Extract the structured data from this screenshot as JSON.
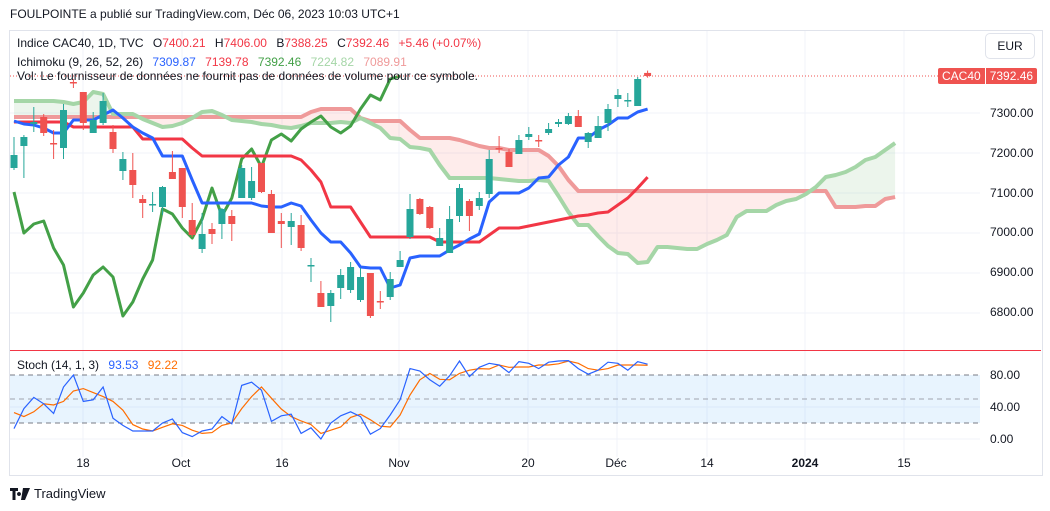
{
  "publisher_line": "FOULPOINTE a publié sur TradingView.com, Déc 06, 2023 10:03 UTC+1",
  "legend": {
    "symbol": "Indice CAC40, 1D, TVC",
    "o_label": "O",
    "o": "7400.21",
    "h_label": "H",
    "h": "7406.00",
    "b_label": "B",
    "b": "7388.25",
    "c_label": "C",
    "c": "7392.46",
    "change": "+5.46 (+0.07%)",
    "ichimoku_label": "Ichimoku (9, 26, 52, 26)",
    "ichimoku_values": [
      "7309.87",
      "7139.78",
      "7392.46",
      "7224.82",
      "7089.91"
    ],
    "vol_note": "Vol: Le fournisseur de données ne fournit pas de données de volume pour ce symbole.",
    "stoch_label": "Stoch (14, 1, 3)",
    "stoch_k": "93.53",
    "stoch_d": "92.22"
  },
  "currency_button": "EUR",
  "last_price_tag": {
    "symbol": "CAC40",
    "price": "7392.46"
  },
  "price_axis": [
    "7300.00",
    "7200.00",
    "7100.00",
    "7000.00",
    "6900.00",
    "6800.00"
  ],
  "stoch_axis": [
    "80.00",
    "40.00",
    "0.00"
  ],
  "time_axis": [
    "18",
    "Oct",
    "16",
    "Nov",
    "20",
    "Déc",
    "14",
    "2024",
    "15"
  ],
  "brand": "TradingView",
  "colors": {
    "up": "#26a69a",
    "down": "#ef5350",
    "tenkan": "#2962ff",
    "kijun": "#f23645",
    "chikou": "#43a047",
    "span_a": "#a5d6a7",
    "span_b": "#ef9a9a",
    "stoch_k": "#2962ff",
    "stoch_d": "#ff6d00"
  },
  "chart_data": {
    "type": "candlestick",
    "symbol": "CAC40",
    "ylim": [
      6730,
      7545
    ],
    "ohlc": [
      [
        7162.5,
        7240,
        7157.5,
        7195
      ],
      [
        7217.5,
        7245,
        7137.5,
        7240
      ],
      [
        7272.5,
        7315,
        7252.5,
        7277.5
      ],
      [
        7290,
        7297.5,
        7242.5,
        7250
      ],
      [
        7225,
        7257.5,
        7185,
        7222
      ],
      [
        7212.5,
        7322.5,
        7185,
        7307.5
      ],
      [
        7377.5,
        7385,
        7362.5,
        7375
      ],
      [
        7352.5,
        7352.5,
        7257.5,
        7275
      ],
      [
        7250,
        7302.5,
        7250,
        7282.5
      ],
      [
        7275,
        7350,
        7270,
        7330
      ],
      [
        7252.5,
        7270,
        7200,
        7210
      ],
      [
        7155,
        7202.5,
        7132.5,
        7185
      ],
      [
        7157.5,
        7200,
        7087.5,
        7120
      ],
      [
        7085,
        7095,
        7037.5,
        7075
      ],
      [
        7070,
        7102.5,
        7052.5,
        7072.5
      ],
      [
        7065,
        7117.5,
        7045,
        7115
      ],
      [
        7152.5,
        7205,
        7135,
        7135
      ],
      [
        7162.5,
        7162.5,
        7037.5,
        7065
      ],
      [
        7032.5,
        7075,
        6990,
        6995
      ],
      [
        6960,
        7050,
        6950,
        6997.5
      ],
      [
        7010,
        7025,
        6972.5,
        6997.5
      ],
      [
        7022.5,
        7062.5,
        6985,
        7060
      ],
      [
        7042.5,
        7057.5,
        6980,
        7022.5
      ],
      [
        7087.5,
        7170,
        7087.5,
        7162.5
      ],
      [
        7087.5,
        7165,
        7082.5,
        7130
      ],
      [
        7175,
        7175,
        7100,
        7102.5
      ],
      [
        7097.5,
        7107.5,
        7000,
        7000
      ],
      [
        7030,
        7050,
        6962.5,
        7022.5
      ],
      [
        7015,
        7050,
        6970,
        7030
      ],
      [
        7020,
        7045,
        6955,
        6962.5
      ],
      [
        6917.5,
        6937.5,
        6877.5,
        6920
      ],
      [
        6850,
        6880,
        6815,
        6815
      ],
      [
        6817.5,
        6857.5,
        6777.5,
        6850
      ],
      [
        6862.5,
        6910,
        6835,
        6895
      ],
      [
        6857.5,
        6927.5,
        6850,
        6915
      ],
      [
        6832.5,
        6912.5,
        6827.5,
        6890
      ],
      [
        6900,
        6900,
        6787.5,
        6792.5
      ],
      [
        6830,
        6855,
        6810,
        6827.5
      ],
      [
        6840,
        6902.5,
        6832.5,
        6885
      ],
      [
        6915,
        6955,
        6915,
        6932.5
      ],
      [
        6990,
        7097.5,
        6985,
        7060
      ],
      [
        7085,
        7087.5,
        7045,
        7047.5
      ],
      [
        7065,
        7067.5,
        7010,
        7012.5
      ],
      [
        6967.5,
        7012.5,
        6967.5,
        6987.5
      ],
      [
        6950,
        7067.5,
        6950,
        7035
      ],
      [
        7042.5,
        7122.5,
        7027.5,
        7112.5
      ],
      [
        7080,
        7085,
        7005,
        7042.5
      ],
      [
        7067.5,
        7102.5,
        7057.5,
        7087.5
      ],
      [
        7097.5,
        7207.5,
        7087.5,
        7185
      ],
      [
        7212.5,
        7242.5,
        7200,
        7210
      ],
      [
        7202.5,
        7210,
        7165,
        7165
      ],
      [
        7197.5,
        7245,
        7197.5,
        7232.5
      ],
      [
        7240,
        7265,
        7232.5,
        7247.5
      ],
      [
        7232.5,
        7245,
        7215,
        7230
      ],
      [
        7250,
        7275,
        7245,
        7260
      ],
      [
        7272.5,
        7285,
        7265,
        7277.5
      ],
      [
        7272.5,
        7300,
        7270,
        7292.5
      ],
      [
        7292.5,
        7307.5,
        7265,
        7265
      ],
      [
        7227.5,
        7252.5,
        7212.5,
        7250
      ],
      [
        7237.5,
        7292.5,
        7237.5,
        7267.5
      ],
      [
        7275,
        7322.5,
        7255,
        7310
      ],
      [
        7335,
        7360,
        7315,
        7345
      ],
      [
        7330,
        7350,
        7315,
        7332.5
      ],
      [
        7317.5,
        7390,
        7317.5,
        7385
      ],
      [
        7400.21,
        7406,
        7388.25,
        7392.46
      ]
    ],
    "tenkan": [
      7280,
      7272.5,
      7270,
      7262.5,
      7250,
      7250,
      7282.5,
      7282.5,
      7282.5,
      7295,
      7307.5,
      7287.5,
      7265,
      7250,
      7237.5,
      7192.5,
      7192.5,
      7192.5,
      7132.5,
      7075,
      7075,
      7075,
      7075,
      7075,
      7075,
      7067.5,
      7065,
      7065,
      7075,
      7067.5,
      7032.5,
      7000,
      6977.5,
      6977.5,
      6950,
      6915,
      6912.5,
      6912.5,
      6862.5,
      6870,
      6937.5,
      6942.5,
      6942.5,
      6942.5,
      6957.5,
      6970,
      6985,
      6997.5,
      7077.5,
      7100,
      7100,
      7100,
      7112.5,
      7137.5,
      7140,
      7170,
      7190,
      7237.5,
      7237.5,
      7257.5,
      7270,
      7287.5,
      7287.5,
      7302.5,
      7309.87
    ],
    "kijun": [
      7277.5,
      7277.5,
      7277.5,
      7277.5,
      7277.5,
      7277.5,
      7265,
      7265,
      7265,
      7265,
      7265,
      7265,
      7265,
      7235,
      7235,
      7235,
      7235,
      7235,
      7212.5,
      7192.5,
      7192.5,
      7192.5,
      7192.5,
      7192.5,
      7192.5,
      7192.5,
      7192.5,
      7192.5,
      7192.5,
      7182.5,
      7157.5,
      7127.5,
      7065,
      7065,
      7065,
      7027.5,
      6990,
      6990,
      6990,
      6990,
      6990,
      6990,
      6990,
      6977.5,
      6977.5,
      6977.5,
      6977.5,
      6977.5,
      6995,
      7012.5,
      7012.5,
      7012.5,
      7017.5,
      7022.5,
      7027.5,
      7032.5,
      7037.5,
      7042.5,
      7045,
      7050,
      7052.5,
      7070,
      7087.5,
      7112.5,
      7139.78
    ],
    "chikou_displacement_bars": 25,
    "span_a": [
      7330,
      7330,
      7330,
      7330,
      7330,
      7327.5,
      7322.5,
      7327.5,
      7352.5,
      7347.5,
      7297.5,
      7297.5,
      7297.5,
      7285,
      7275,
      7265,
      7267.5,
      7275,
      7287.5,
      7302.5,
      7305,
      7295,
      7282.5,
      7280,
      7277.5,
      7272.5,
      7270,
      7265,
      7262.5,
      7267.5,
      7275,
      7275,
      7275,
      7277.5,
      7275,
      7287.5,
      7275,
      7262.5,
      7237.5,
      7235,
      7215,
      7212.5,
      7207.5,
      7170,
      7137.5,
      7137.5,
      7137.5,
      7137.5,
      7137.5,
      7135,
      7132.5,
      7130,
      7130,
      7132.5,
      7130,
      7092.5,
      7052.5,
      7020,
      7020,
      6992.5,
      6967.5,
      6950,
      6947.5,
      6925,
      6927.5,
      6965,
      6965,
      6962.5,
      6960,
      6960,
      6972.5,
      6982.5,
      6995,
      7040,
      7055,
      7055,
      7055,
      7070,
      7080,
      7085,
      7097.5,
      7115,
      7140,
      7145,
      7152.5,
      7165,
      7182.5,
      7190,
      7207.5,
      7224.82
    ],
    "span_b": [
      7290,
      7290,
      7290,
      7290,
      7290,
      7290,
      7290,
      7290,
      7290,
      7290,
      7290,
      7290,
      7290,
      7290,
      7290,
      7290,
      7290,
      7290,
      7290,
      7290,
      7290,
      7290,
      7290,
      7290,
      7290,
      7290,
      7290,
      7290,
      7290,
      7290,
      7302.5,
      7310,
      7310,
      7310,
      7310,
      7287.5,
      7280,
      7280,
      7280,
      7280,
      7257.5,
      7237.5,
      7237.5,
      7237.5,
      7237.5,
      7232.5,
      7225,
      7217.5,
      7212.5,
      7212.5,
      7207.5,
      7207.5,
      7207.5,
      7207.5,
      7192.5,
      7167.5,
      7132.5,
      7105,
      7105,
      7105,
      7105,
      7105,
      7105,
      7105,
      7105,
      7105,
      7105,
      7105,
      7105,
      7105,
      7105,
      7105,
      7105,
      7105,
      7105,
      7105,
      7105,
      7105,
      7105,
      7105,
      7105,
      7105,
      7105,
      7065,
      7065,
      7065,
      7067.5,
      7067.5,
      7085,
      7089.91
    ],
    "stoch": {
      "k": [
        13,
        38,
        52,
        44,
        32,
        65,
        80,
        47,
        49,
        65,
        26,
        17,
        10,
        10,
        10,
        20,
        25,
        8,
        3,
        10,
        12.5,
        28,
        19,
        67,
        71,
        61,
        22,
        29,
        31,
        7,
        14,
        0,
        20,
        29,
        34,
        28,
        6,
        13,
        30,
        49,
        88,
        85,
        74,
        66,
        79,
        97.5,
        78,
        89.6,
        94.6,
        92.5,
        83,
        96.7,
        94.6,
        88,
        96,
        97.5,
        98,
        88,
        81,
        86,
        96,
        94.6,
        86,
        96.7,
        93.53
      ],
      "d": [
        33,
        28,
        34,
        44,
        42.5,
        47,
        60,
        63,
        58,
        53,
        47,
        36,
        18,
        12.5,
        10,
        14.6,
        19,
        17,
        11,
        7,
        8,
        17,
        20,
        38,
        53,
        65,
        51,
        37.5,
        28,
        22.5,
        18,
        7,
        11,
        15,
        27,
        31,
        24,
        16,
        15,
        30,
        55,
        74,
        82,
        74.6,
        74,
        82,
        86,
        88,
        87.5,
        92.5,
        89.6,
        90,
        90,
        92.5,
        92.5,
        94,
        97.5,
        94.6,
        88,
        86,
        88,
        92.5,
        92.5,
        92.5,
        92.22
      ],
      "bands": [
        80,
        50,
        20
      ],
      "ylim": [
        0,
        100
      ]
    }
  }
}
